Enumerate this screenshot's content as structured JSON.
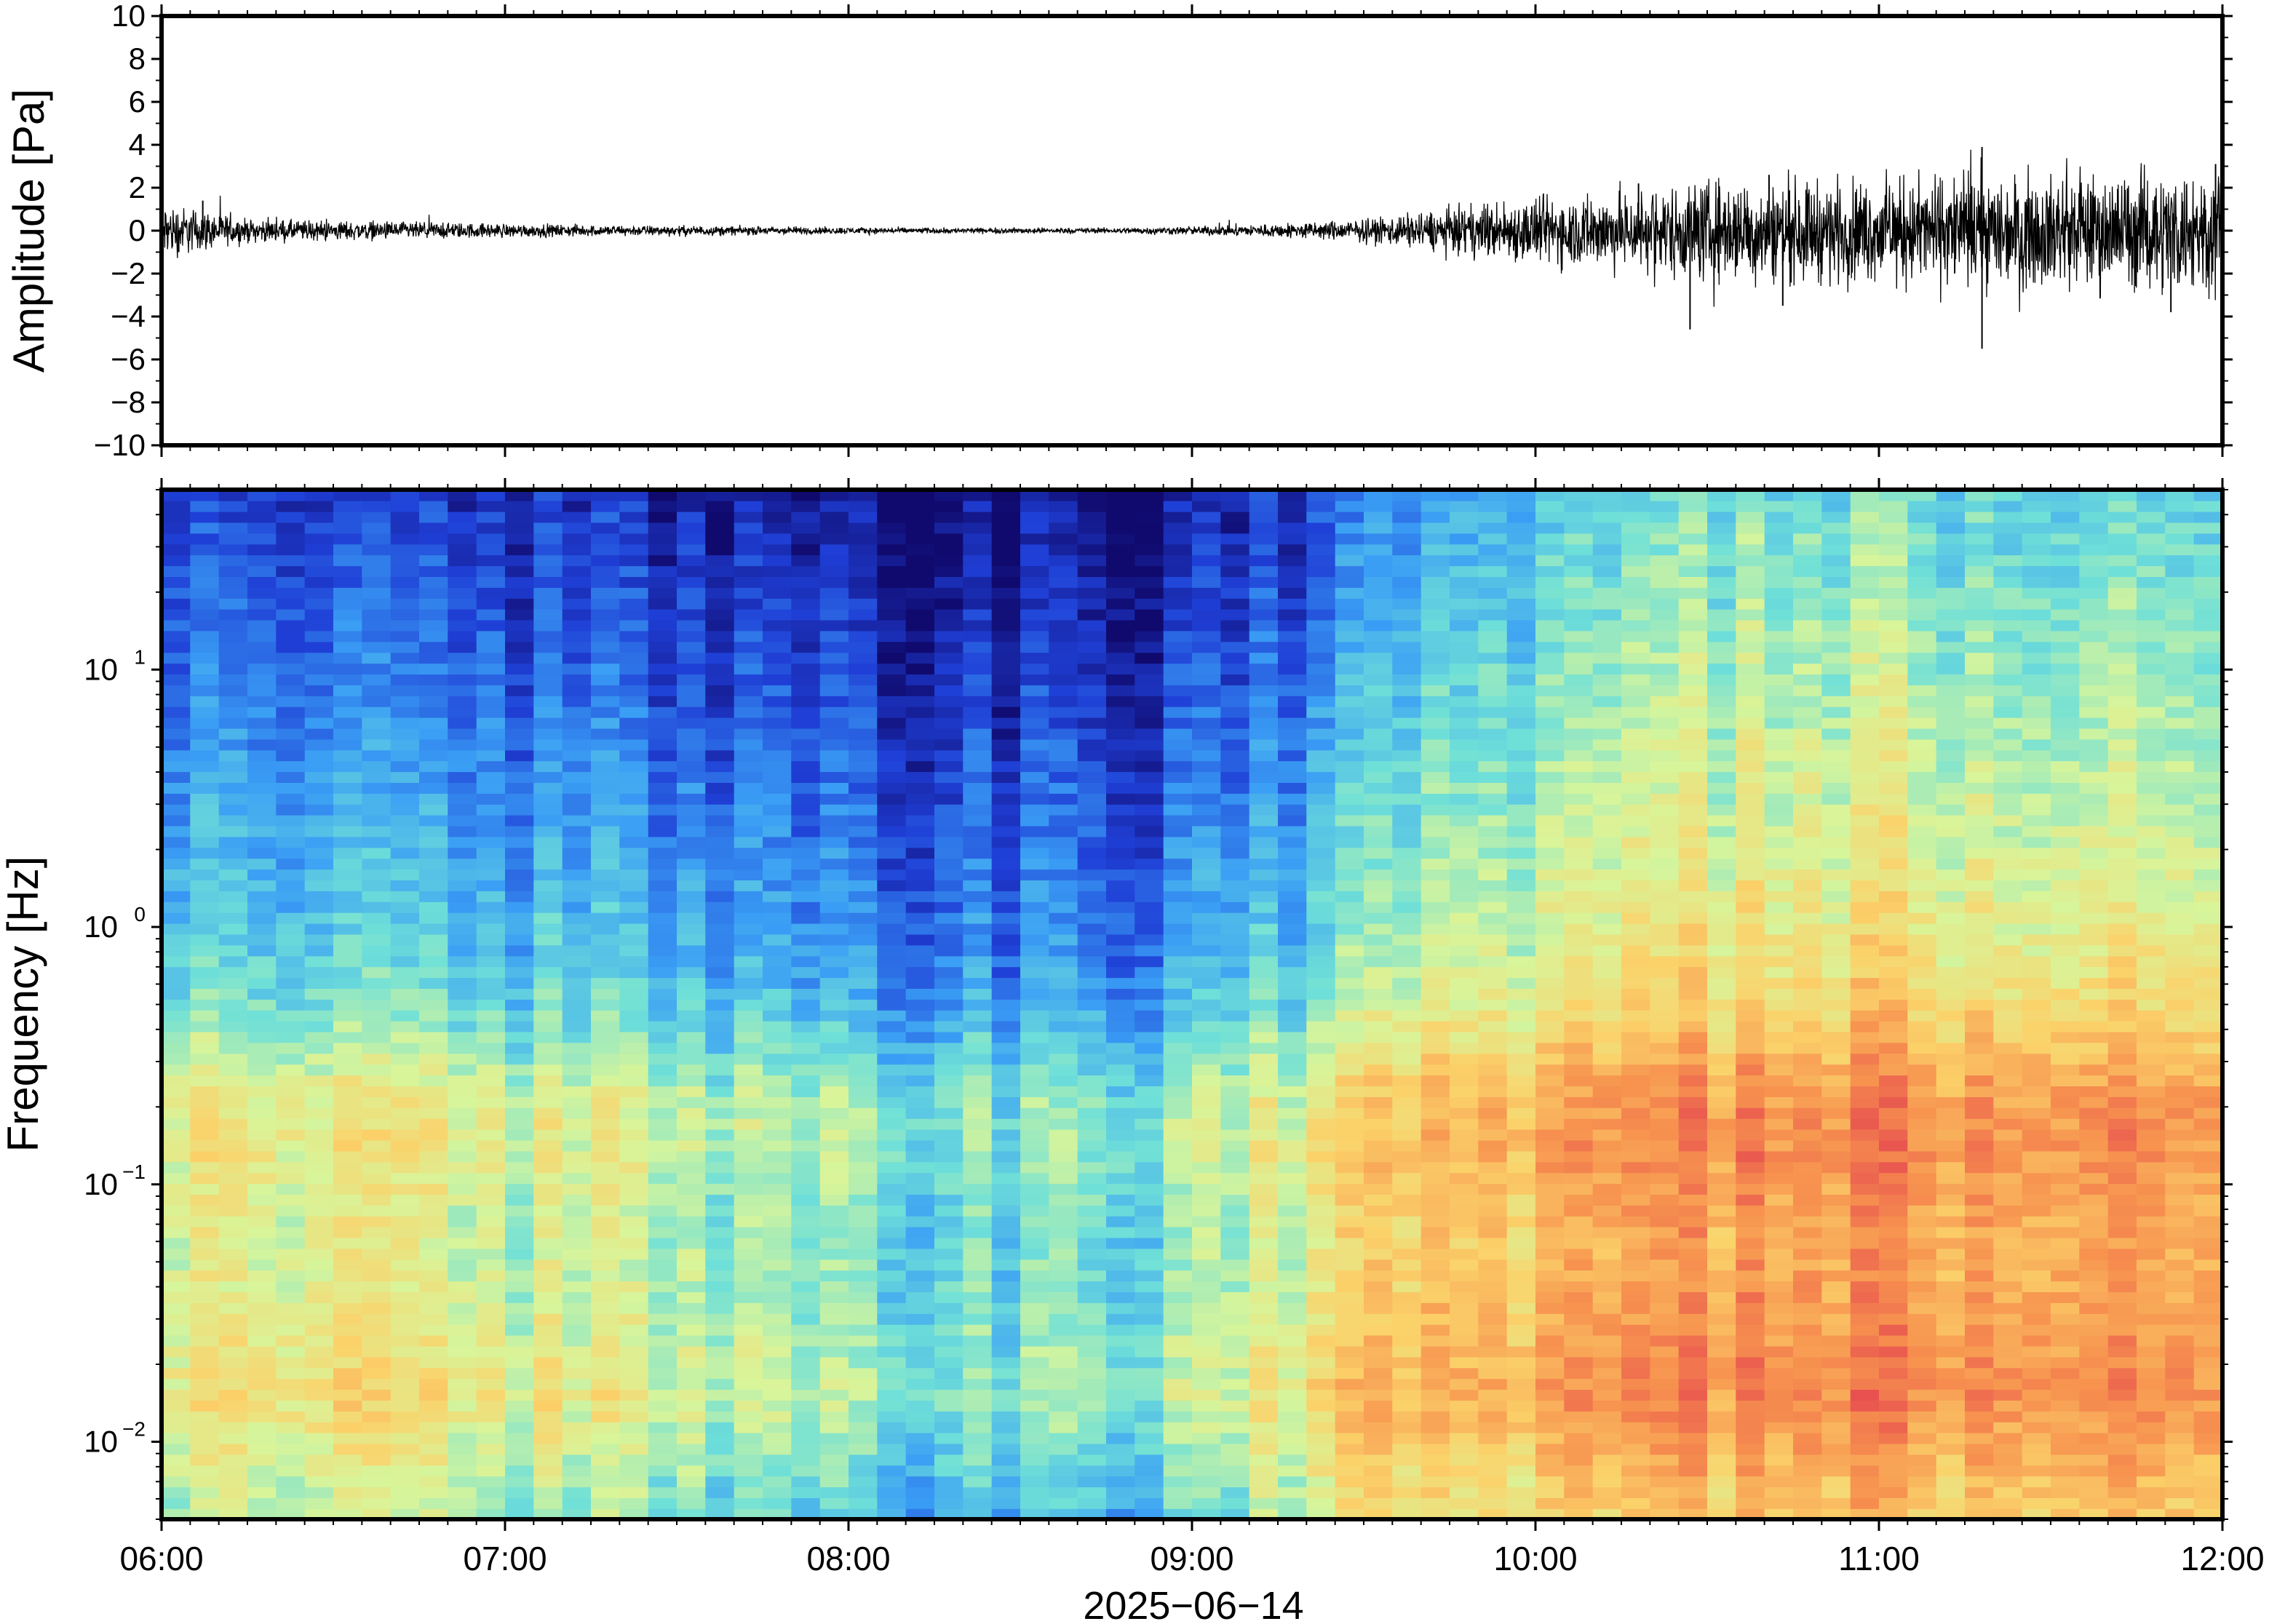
{
  "chart_data": [
    {
      "type": "line",
      "ylabel": "Amplitude [Pa]",
      "ylim": [
        -10,
        10
      ],
      "yticks": [
        10,
        8,
        6,
        4,
        2,
        0,
        -2,
        -4,
        -6,
        -8,
        -10
      ],
      "ytick_labels": [
        "10",
        "8",
        "6",
        "4",
        "2",
        "0",
        "−2",
        "−4",
        "−6",
        "−8",
        "−10"
      ],
      "xlim": [
        "06:00",
        "12:00"
      ],
      "color": "#000000",
      "series": [
        {
          "envelope_hours": [
            6.0,
            6.25,
            6.5,
            6.75,
            7.0,
            7.25,
            7.5,
            7.75,
            8.0,
            8.25,
            8.5,
            8.75,
            9.0,
            9.25,
            9.5,
            9.75,
            10.0,
            10.25,
            10.5,
            10.75,
            11.0,
            11.25,
            11.5,
            11.75,
            12.0
          ],
          "envelope_amp": [
            1.0,
            0.4,
            0.35,
            0.3,
            0.25,
            0.2,
            0.18,
            0.15,
            0.12,
            0.1,
            0.1,
            0.1,
            0.15,
            0.25,
            0.4,
            0.8,
            1.2,
            1.4,
            1.8,
            1.8,
            1.8,
            2.0,
            2.0,
            2.1,
            2.3
          ],
          "spikes": [
            {
              "t": 6.12,
              "a": 1.4
            },
            {
              "t": 6.05,
              "a": -1.0
            },
            {
              "t": 10.3,
              "a": 2.2
            },
            {
              "t": 10.45,
              "a": -4.6
            },
            {
              "t": 10.68,
              "a": 2.6
            },
            {
              "t": 10.72,
              "a": -3.5
            },
            {
              "t": 11.3,
              "a": 3.9
            },
            {
              "t": 11.3,
              "a": -5.5
            },
            {
              "t": 11.85,
              "a": -3.8
            },
            {
              "t": 11.98,
              "a": 3.1
            }
          ]
        }
      ]
    },
    {
      "type": "heatmap",
      "ylabel": "Frequency [Hz]",
      "xlabel": "2025−06−14",
      "y_scale": "log",
      "ylim": [
        0.005,
        50
      ],
      "yticks": [
        0.01,
        0.1,
        1,
        10
      ],
      "ytick_labels": [
        {
          "base": "10",
          "exp": "−2"
        },
        {
          "base": "10",
          "exp": "−1"
        },
        {
          "base": "10",
          "exp": "0"
        },
        {
          "base": "10",
          "exp": "1"
        }
      ],
      "x_ticks": [
        "06:00",
        "07:00",
        "08:00",
        "09:00",
        "10:00",
        "11:00",
        "12:00"
      ],
      "colormap": "rainbow (blue low power → red/pink high power)",
      "colormap_stops": [
        "#100a6e",
        "#1f3fd6",
        "#3a9ef5",
        "#6fe0d8",
        "#d8f59a",
        "#fbd26a",
        "#f7934f",
        "#e8504f",
        "#f58a9a"
      ],
      "power_levels_by_hour": {
        "hours": [
          6.0,
          6.5,
          7.0,
          7.5,
          8.0,
          8.5,
          9.0,
          9.25,
          9.5,
          9.75,
          10.0,
          10.3,
          10.5,
          11.0,
          11.5,
          12.0
        ],
        "low_freq": [
          0.65,
          0.66,
          0.62,
          0.6,
          0.5,
          0.48,
          0.52,
          0.66,
          0.74,
          0.76,
          0.78,
          0.82,
          0.84,
          0.84,
          0.86,
          0.86
        ],
        "high_freq": [
          0.12,
          0.08,
          0.08,
          0.07,
          0.02,
          0.01,
          0.02,
          0.1,
          0.18,
          0.26,
          0.3,
          0.35,
          0.38,
          0.38,
          0.38,
          0.38
        ]
      }
    }
  ]
}
